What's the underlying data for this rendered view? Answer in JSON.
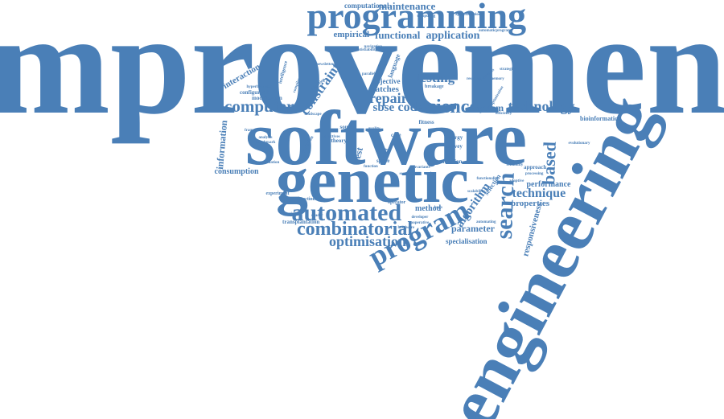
{
  "word_cloud": {
    "color": "#4a7fb7",
    "words": [
      {
        "text": "improvement",
        "weight": 100
      },
      {
        "text": "software",
        "weight": 60
      },
      {
        "text": "engineering",
        "weight": 55
      },
      {
        "text": "genetic",
        "weight": 50
      },
      {
        "text": "programming",
        "weight": 28
      },
      {
        "text": "program",
        "weight": 24
      },
      {
        "text": "search",
        "weight": 22
      },
      {
        "text": "automated",
        "weight": 19
      },
      {
        "text": "combinatorial",
        "weight": 15
      },
      {
        "text": "science",
        "weight": 15
      },
      {
        "text": "computer",
        "weight": 14
      },
      {
        "text": "based",
        "weight": 14
      },
      {
        "text": "optimisation",
        "weight": 12
      },
      {
        "text": "technology",
        "weight": 12
      },
      {
        "text": "repair",
        "weight": 11
      },
      {
        "text": "testing",
        "weight": 11
      },
      {
        "text": "technique",
        "weight": 10
      },
      {
        "text": "maintenance",
        "weight": 9
      },
      {
        "text": "application",
        "weight": 9
      },
      {
        "text": "code",
        "weight": 9
      },
      {
        "text": "constraint",
        "weight": 9
      },
      {
        "text": "functional",
        "weight": 8
      },
      {
        "text": "sbse",
        "weight": 8
      },
      {
        "text": "information",
        "weight": 8
      },
      {
        "text": "responsiveness",
        "weight": 8
      },
      {
        "text": "algorithm",
        "weight": 8
      },
      {
        "text": "empirical",
        "weight": 7
      },
      {
        "text": "system",
        "weight": 7
      },
      {
        "text": "parameter",
        "weight": 7
      },
      {
        "text": "properties",
        "weight": 7
      },
      {
        "text": "method",
        "weight": 7
      },
      {
        "text": "patches",
        "weight": 6
      },
      {
        "text": "interaction",
        "weight": 6
      },
      {
        "text": "performance",
        "weight": 6
      },
      {
        "text": "specialisation",
        "weight": 6
      },
      {
        "text": "consumption",
        "weight": 6
      },
      {
        "text": "computational",
        "weight": 5
      },
      {
        "text": "objective",
        "weight": 5
      },
      {
        "text": "configurable",
        "weight": 5
      },
      {
        "text": "modification",
        "weight": 5
      },
      {
        "text": "bioinformatics",
        "weight": 5
      },
      {
        "text": "transplantation",
        "weight": 5
      },
      {
        "text": "execution",
        "weight": 5
      },
      {
        "text": "approach",
        "weight": 5
      },
      {
        "text": "selection",
        "weight": 5
      },
      {
        "text": "energy",
        "weight": 5
      },
      {
        "text": "survey",
        "weight": 5
      },
      {
        "text": "source",
        "weight": 5
      },
      {
        "text": "space",
        "weight": 5
      },
      {
        "text": "fitness",
        "weight": 5
      },
      {
        "text": "experiment",
        "weight": 4
      },
      {
        "text": "detection",
        "weight": 4
      },
      {
        "text": "operator",
        "weight": 4
      },
      {
        "text": "breakage",
        "weight": 4
      },
      {
        "text": "language",
        "weight": 4
      },
      {
        "text": "intelligence",
        "weight": 4
      },
      {
        "text": "theory",
        "weight": 4
      },
      {
        "text": "model",
        "weight": 4
      },
      {
        "text": "case",
        "weight": 4
      },
      {
        "text": "satisfiability",
        "weight": 3
      },
      {
        "text": "automaticprogram",
        "weight": 3
      },
      {
        "text": "computing",
        "weight": 3
      },
      {
        "text": "newsletters",
        "weight": 3
      },
      {
        "text": "framework",
        "weight": 3
      },
      {
        "text": "efficiency",
        "weight": 3
      },
      {
        "text": "research",
        "weight": 3
      },
      {
        "text": "evolution",
        "weight": 3
      },
      {
        "text": "developer",
        "weight": 3
      },
      {
        "text": "processing",
        "weight": 3
      },
      {
        "text": "parallel",
        "weight": 3
      },
      {
        "text": "memory",
        "weight": 3
      },
      {
        "text": "evolutionary",
        "weight": 3
      },
      {
        "text": "migration",
        "weight": 3
      },
      {
        "text": "navigation",
        "weight": 3
      },
      {
        "text": "functionality",
        "weight": 3
      },
      {
        "text": "heuristic",
        "weight": 3
      },
      {
        "text": "quality",
        "weight": 3
      },
      {
        "text": "strategies",
        "weight": 3
      },
      {
        "text": "automating",
        "weight": 3
      },
      {
        "text": "correctness",
        "weight": 3
      },
      {
        "text": "function",
        "weight": 3
      },
      {
        "text": "analysis",
        "weight": 3
      },
      {
        "text": "benchmark",
        "weight": 3
      },
      {
        "text": "landscape",
        "weight": 3
      },
      {
        "text": "compiler",
        "weight": 3
      },
      {
        "text": "sequence",
        "weight": 3
      },
      {
        "text": "reliability",
        "weight": 3
      },
      {
        "text": "invariants",
        "weight": 3
      },
      {
        "text": "optimization",
        "weight": 3
      },
      {
        "text": "evaluation",
        "weight": 3
      },
      {
        "text": "cooperative",
        "weight": 3
      },
      {
        "text": "shader",
        "weight": 3
      },
      {
        "text": "approximation",
        "weight": 3
      },
      {
        "text": "scalability",
        "weight": 3
      },
      {
        "text": "hyperheuristic",
        "weight": 3
      },
      {
        "text": "objectives",
        "weight": 3
      },
      {
        "text": "adaptive",
        "weight": 3
      },
      {
        "text": "hardware",
        "weight": 3
      },
      {
        "text": "test",
        "weight": 3
      },
      {
        "text": "cache",
        "weight": 3
      },
      {
        "text": "bugs",
        "weight": 3
      }
    ]
  }
}
